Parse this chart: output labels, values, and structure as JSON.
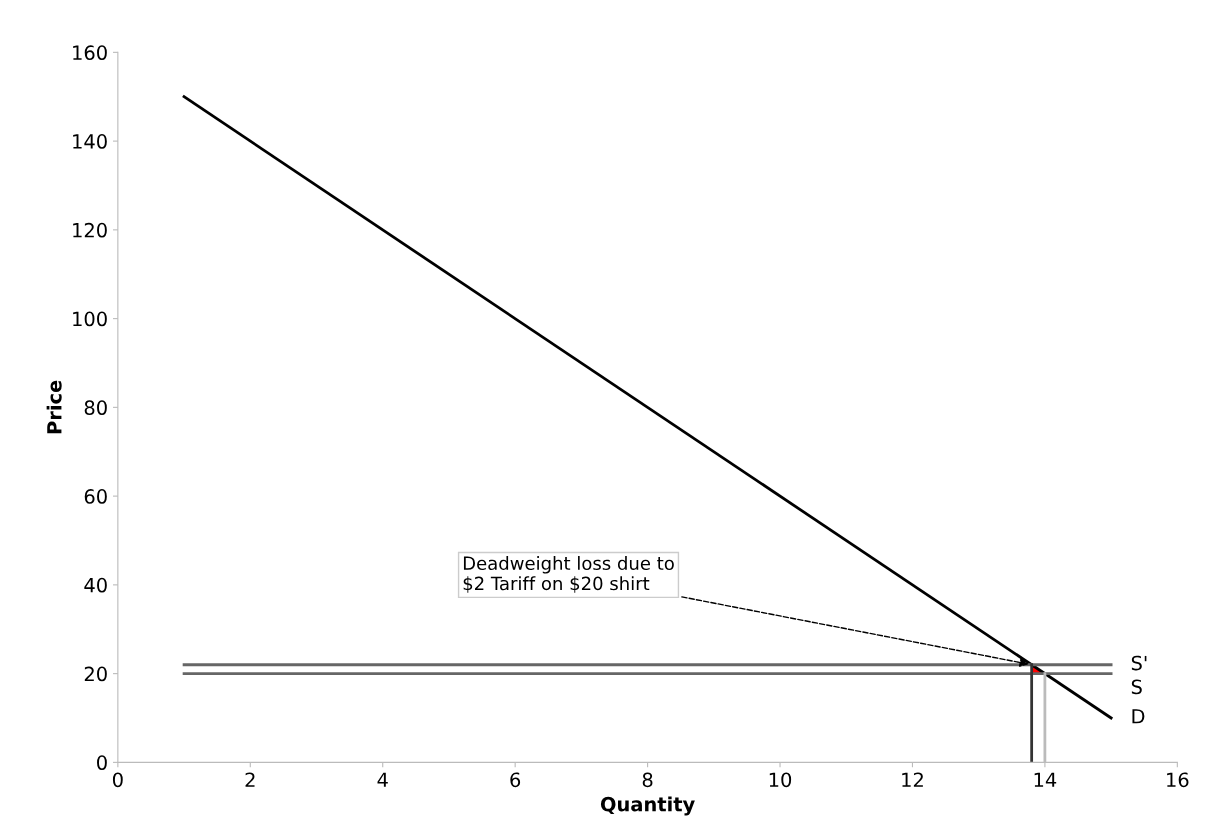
{
  "chart_data": {
    "type": "line",
    "xlabel": "Quantity",
    "ylabel": "Price",
    "xlim": [
      0,
      16
    ],
    "xticks": [
      0,
      2,
      4,
      6,
      8,
      10,
      12,
      14,
      16
    ],
    "ylim": [
      0,
      160
    ],
    "yticks": [
      0,
      20,
      40,
      60,
      80,
      100,
      120,
      140,
      160
    ],
    "grid": false,
    "legend": false,
    "marker": "none",
    "series": [
      {
        "name": "D",
        "color": "#000000",
        "x": [
          1,
          15
        ],
        "values": [
          150,
          10
        ]
      },
      {
        "name": "S'",
        "color": "#666666",
        "x": [
          1,
          15
        ],
        "values": [
          22,
          22
        ]
      },
      {
        "name": "S",
        "color": "#666666",
        "x": [
          1,
          15
        ],
        "values": [
          20,
          20
        ]
      },
      {
        "color": "#333333",
        "x": [
          13.8,
          13.8
        ],
        "values": [
          0,
          22
        ]
      },
      {
        "color": "#bbbbbb",
        "x": [
          14,
          14
        ],
        "values": [
          0,
          20
        ]
      },
      {
        "type": "area",
        "color": "#ff0000",
        "x": [
          13.8,
          13.8,
          14
        ],
        "values": [
          20,
          22,
          20
        ]
      }
    ],
    "annotations": [
      {
        "text": "Deadweight loss due to\n$2 Tariff on $20 shirt",
        "x": 13.8,
        "y": 22
      }
    ]
  }
}
